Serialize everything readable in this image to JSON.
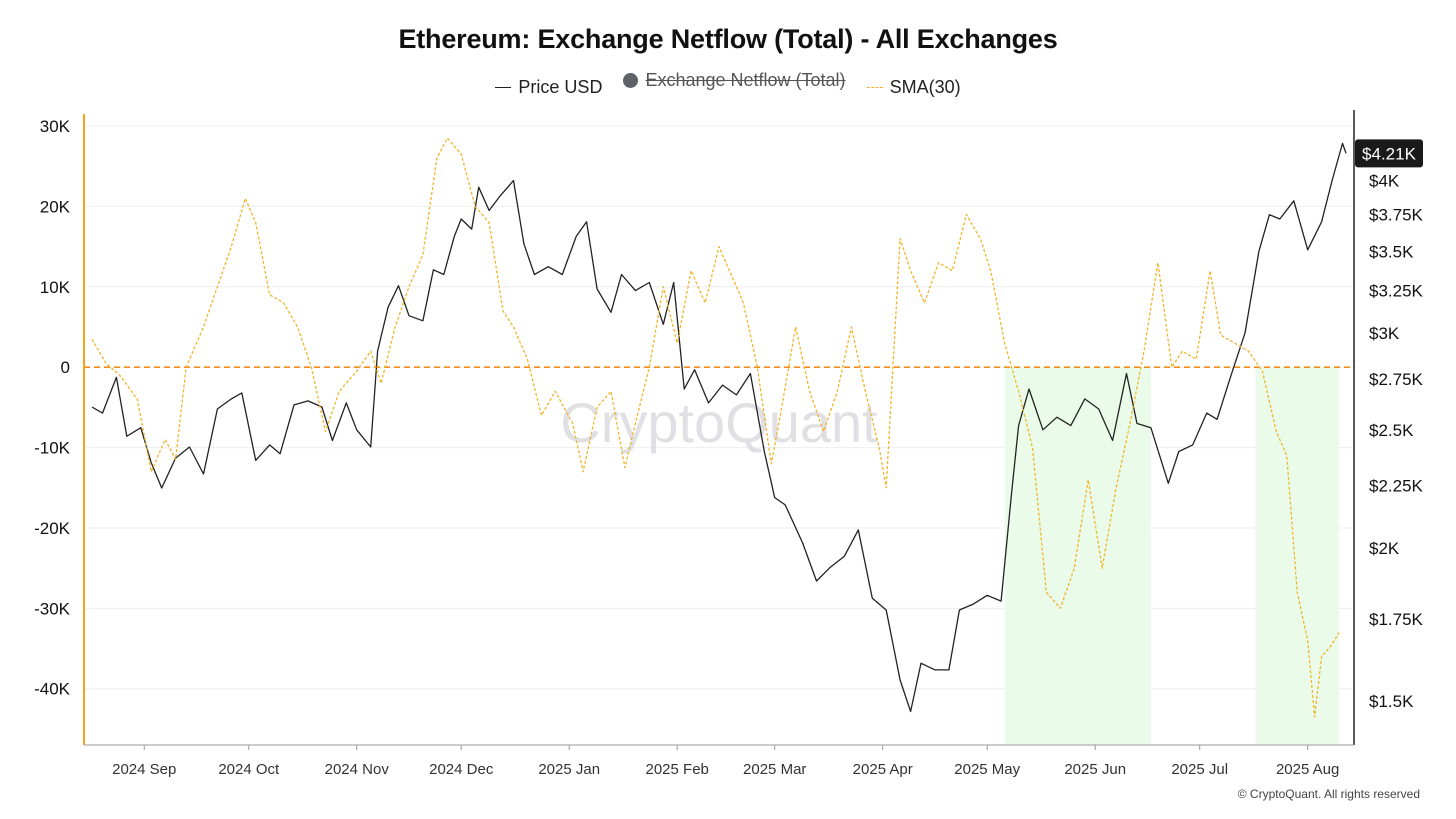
{
  "chart_data": {
    "type": "line",
    "title": "Ethereum: Exchange Netflow (Total) - All Exchanges",
    "watermark": "CryptoQuant",
    "footer": "© CryptoQuant. All rights reserved",
    "legend": [
      {
        "name": "Price USD",
        "style": "line",
        "color": "#222222",
        "hidden": false
      },
      {
        "name": "Exchange Netflow (Total)",
        "style": "dot",
        "color": "#5f6368",
        "hidden": true
      },
      {
        "name": "SMA(30)",
        "style": "dashed",
        "color": "#f0b429",
        "hidden": false
      }
    ],
    "x_ticks": [
      "2024 Sep",
      "2024 Oct",
      "2024 Nov",
      "2024 Dec",
      "2025 Jan",
      "2025 Feb",
      "2025 Mar",
      "2025 Apr",
      "2025 May",
      "2025 Jun",
      "2025 Jul",
      "2025 Aug"
    ],
    "x_range": [
      "2024-08-17",
      "2025-08-12"
    ],
    "y_left": {
      "ticks": [
        30000,
        20000,
        10000,
        0,
        -10000,
        -20000,
        -30000,
        -40000
      ],
      "labels": [
        "30K",
        "20K",
        "10K",
        "0",
        "-10K",
        "-20K",
        "-30K",
        "-40K"
      ],
      "range": [
        -47000,
        31000
      ],
      "reference_line": 0
    },
    "y_right": {
      "scale": "log",
      "ticks": [
        4000,
        3750,
        3500,
        3250,
        3000,
        2750,
        2500,
        2250,
        2000,
        1750,
        1500
      ],
      "labels": [
        "$4K",
        "$3.75K",
        "$3.5K",
        "$3.25K",
        "$3K",
        "$2.75K",
        "$2.5K",
        "$2.25K",
        "$2K",
        "$1.75K",
        "$1.5K"
      ],
      "range": [
        1380,
        4500
      ]
    },
    "current_price_label": "$4.21K",
    "current_price": 4210,
    "highlight_ranges": [
      [
        "2025-05-06",
        "2025-06-17"
      ],
      [
        "2025-07-17",
        "2025-08-10"
      ]
    ],
    "series": [
      {
        "name": "Price USD",
        "axis": "right",
        "color": "#222222",
        "points": [
          [
            "2024-08-17",
            2610
          ],
          [
            "2024-08-20",
            2580
          ],
          [
            "2024-08-24",
            2760
          ],
          [
            "2024-08-27",
            2470
          ],
          [
            "2024-08-31",
            2510
          ],
          [
            "2024-09-03",
            2350
          ],
          [
            "2024-09-06",
            2240
          ],
          [
            "2024-09-10",
            2370
          ],
          [
            "2024-09-14",
            2420
          ],
          [
            "2024-09-18",
            2300
          ],
          [
            "2024-09-22",
            2600
          ],
          [
            "2024-09-26",
            2650
          ],
          [
            "2024-09-29",
            2680
          ],
          [
            "2024-10-03",
            2360
          ],
          [
            "2024-10-07",
            2430
          ],
          [
            "2024-10-10",
            2390
          ],
          [
            "2024-10-14",
            2620
          ],
          [
            "2024-10-18",
            2640
          ],
          [
            "2024-10-22",
            2610
          ],
          [
            "2024-10-25",
            2450
          ],
          [
            "2024-10-29",
            2630
          ],
          [
            "2024-11-01",
            2500
          ],
          [
            "2024-11-05",
            2420
          ],
          [
            "2024-11-07",
            2900
          ],
          [
            "2024-11-10",
            3150
          ],
          [
            "2024-11-13",
            3280
          ],
          [
            "2024-11-16",
            3100
          ],
          [
            "2024-11-20",
            3070
          ],
          [
            "2024-11-23",
            3380
          ],
          [
            "2024-11-26",
            3350
          ],
          [
            "2024-11-29",
            3600
          ],
          [
            "2024-12-01",
            3720
          ],
          [
            "2024-12-04",
            3650
          ],
          [
            "2024-12-06",
            3950
          ],
          [
            "2024-12-09",
            3780
          ],
          [
            "2024-12-12",
            3880
          ],
          [
            "2024-12-16",
            4000
          ],
          [
            "2024-12-19",
            3550
          ],
          [
            "2024-12-22",
            3350
          ],
          [
            "2024-12-26",
            3400
          ],
          [
            "2024-12-30",
            3350
          ],
          [
            "2025-01-03",
            3600
          ],
          [
            "2025-01-06",
            3700
          ],
          [
            "2025-01-09",
            3260
          ],
          [
            "2025-01-13",
            3120
          ],
          [
            "2025-01-16",
            3350
          ],
          [
            "2025-01-20",
            3250
          ],
          [
            "2025-01-24",
            3300
          ],
          [
            "2025-01-28",
            3050
          ],
          [
            "2025-01-31",
            3300
          ],
          [
            "2025-02-03",
            2700
          ],
          [
            "2025-02-06",
            2800
          ],
          [
            "2025-02-10",
            2630
          ],
          [
            "2025-02-14",
            2720
          ],
          [
            "2025-02-18",
            2670
          ],
          [
            "2025-02-22",
            2780
          ],
          [
            "2025-02-26",
            2400
          ],
          [
            "2025-03-01",
            2200
          ],
          [
            "2025-03-04",
            2170
          ],
          [
            "2025-03-09",
            2020
          ],
          [
            "2025-03-13",
            1880
          ],
          [
            "2025-03-17",
            1930
          ],
          [
            "2025-03-21",
            1970
          ],
          [
            "2025-03-25",
            2070
          ],
          [
            "2025-03-29",
            1820
          ],
          [
            "2025-04-02",
            1780
          ],
          [
            "2025-04-06",
            1560
          ],
          [
            "2025-04-09",
            1470
          ],
          [
            "2025-04-12",
            1610
          ],
          [
            "2025-04-16",
            1590
          ],
          [
            "2025-04-20",
            1590
          ],
          [
            "2025-04-23",
            1780
          ],
          [
            "2025-04-27",
            1800
          ],
          [
            "2025-05-01",
            1830
          ],
          [
            "2025-05-05",
            1810
          ],
          [
            "2025-05-08",
            2220
          ],
          [
            "2025-05-10",
            2520
          ],
          [
            "2025-05-13",
            2700
          ],
          [
            "2025-05-17",
            2500
          ],
          [
            "2025-05-21",
            2560
          ],
          [
            "2025-05-25",
            2520
          ],
          [
            "2025-05-29",
            2650
          ],
          [
            "2025-06-02",
            2600
          ],
          [
            "2025-06-06",
            2450
          ],
          [
            "2025-06-10",
            2780
          ],
          [
            "2025-06-13",
            2530
          ],
          [
            "2025-06-17",
            2510
          ],
          [
            "2025-06-22",
            2260
          ],
          [
            "2025-06-25",
            2400
          ],
          [
            "2025-06-29",
            2430
          ],
          [
            "2025-07-03",
            2580
          ],
          [
            "2025-07-06",
            2550
          ],
          [
            "2025-07-10",
            2770
          ],
          [
            "2025-07-14",
            3000
          ],
          [
            "2025-07-18",
            3500
          ],
          [
            "2025-07-21",
            3750
          ],
          [
            "2025-07-24",
            3720
          ],
          [
            "2025-07-28",
            3850
          ],
          [
            "2025-08-01",
            3510
          ],
          [
            "2025-08-05",
            3700
          ],
          [
            "2025-08-08",
            4000
          ],
          [
            "2025-08-11",
            4290
          ],
          [
            "2025-08-12",
            4210
          ]
        ]
      },
      {
        "name": "SMA(30)",
        "axis": "left",
        "color": "#f0b429",
        "dashed": true,
        "points": [
          [
            "2024-08-17",
            3500
          ],
          [
            "2024-08-21",
            500
          ],
          [
            "2024-08-25",
            -1000
          ],
          [
            "2024-08-30",
            -4000
          ],
          [
            "2024-09-03",
            -13000
          ],
          [
            "2024-09-07",
            -9000
          ],
          [
            "2024-09-10",
            -11500
          ],
          [
            "2024-09-13",
            0
          ],
          [
            "2024-09-18",
            5000
          ],
          [
            "2024-09-22",
            10000
          ],
          [
            "2024-09-26",
            15000
          ],
          [
            "2024-09-30",
            21000
          ],
          [
            "2024-10-03",
            18000
          ],
          [
            "2024-10-07",
            9000
          ],
          [
            "2024-10-11",
            8000
          ],
          [
            "2024-10-15",
            5000
          ],
          [
            "2024-10-19",
            0
          ],
          [
            "2024-10-23",
            -8000
          ],
          [
            "2024-10-27",
            -3000
          ],
          [
            "2024-11-01",
            -500
          ],
          [
            "2024-11-05",
            2000
          ],
          [
            "2024-11-08",
            -2000
          ],
          [
            "2024-11-12",
            5000
          ],
          [
            "2024-11-16",
            10000
          ],
          [
            "2024-11-20",
            14000
          ],
          [
            "2024-11-24",
            26000
          ],
          [
            "2024-11-27",
            28500
          ],
          [
            "2024-12-01",
            26500
          ],
          [
            "2024-12-05",
            20000
          ],
          [
            "2024-12-09",
            18000
          ],
          [
            "2024-12-13",
            7000
          ],
          [
            "2024-12-16",
            5000
          ],
          [
            "2024-12-20",
            1000
          ],
          [
            "2024-12-24",
            -6000
          ],
          [
            "2024-12-28",
            -3000
          ],
          [
            "2025-01-02",
            -7000
          ],
          [
            "2025-01-05",
            -13000
          ],
          [
            "2025-01-09",
            -5000
          ],
          [
            "2025-01-13",
            -3000
          ],
          [
            "2025-01-17",
            -12500
          ],
          [
            "2025-01-20",
            -7000
          ],
          [
            "2025-01-24",
            0
          ],
          [
            "2025-01-28",
            10000
          ],
          [
            "2025-02-01",
            3000
          ],
          [
            "2025-02-05",
            12000
          ],
          [
            "2025-02-09",
            8000
          ],
          [
            "2025-02-13",
            15000
          ],
          [
            "2025-02-16",
            12000
          ],
          [
            "2025-02-20",
            8000
          ],
          [
            "2025-02-24",
            0
          ],
          [
            "2025-02-28",
            -12000
          ],
          [
            "2025-03-03",
            -5000
          ],
          [
            "2025-03-07",
            5000
          ],
          [
            "2025-03-11",
            -3000
          ],
          [
            "2025-03-15",
            -8000
          ],
          [
            "2025-03-19",
            -3000
          ],
          [
            "2025-03-23",
            5000
          ],
          [
            "2025-03-27",
            -3000
          ],
          [
            "2025-03-31",
            -10000
          ],
          [
            "2025-04-02",
            -15000
          ],
          [
            "2025-04-06",
            16000
          ],
          [
            "2025-04-09",
            12000
          ],
          [
            "2025-04-13",
            8000
          ],
          [
            "2025-04-17",
            13000
          ],
          [
            "2025-04-21",
            12000
          ],
          [
            "2025-04-25",
            19000
          ],
          [
            "2025-04-29",
            16000
          ],
          [
            "2025-05-02",
            12000
          ],
          [
            "2025-05-06",
            3000
          ],
          [
            "2025-05-10",
            -3000
          ],
          [
            "2025-05-14",
            -10000
          ],
          [
            "2025-05-18",
            -28000
          ],
          [
            "2025-05-22",
            -30000
          ],
          [
            "2025-05-26",
            -25000
          ],
          [
            "2025-05-30",
            -14000
          ],
          [
            "2025-06-03",
            -25000
          ],
          [
            "2025-06-07",
            -15000
          ],
          [
            "2025-06-11",
            -7000
          ],
          [
            "2025-06-15",
            2000
          ],
          [
            "2025-06-19",
            13000
          ],
          [
            "2025-06-23",
            0
          ],
          [
            "2025-06-26",
            2000
          ],
          [
            "2025-06-30",
            1000
          ],
          [
            "2025-07-04",
            12000
          ],
          [
            "2025-07-07",
            4000
          ],
          [
            "2025-07-11",
            3000
          ],
          [
            "2025-07-15",
            2000
          ],
          [
            "2025-07-19",
            -500
          ],
          [
            "2025-07-23",
            -8000
          ],
          [
            "2025-07-26",
            -11000
          ],
          [
            "2025-07-29",
            -28000
          ],
          [
            "2025-08-01",
            -34000
          ],
          [
            "2025-08-03",
            -43500
          ],
          [
            "2025-08-05",
            -36000
          ],
          [
            "2025-08-08",
            -34500
          ],
          [
            "2025-08-10",
            -33000
          ]
        ]
      }
    ]
  }
}
